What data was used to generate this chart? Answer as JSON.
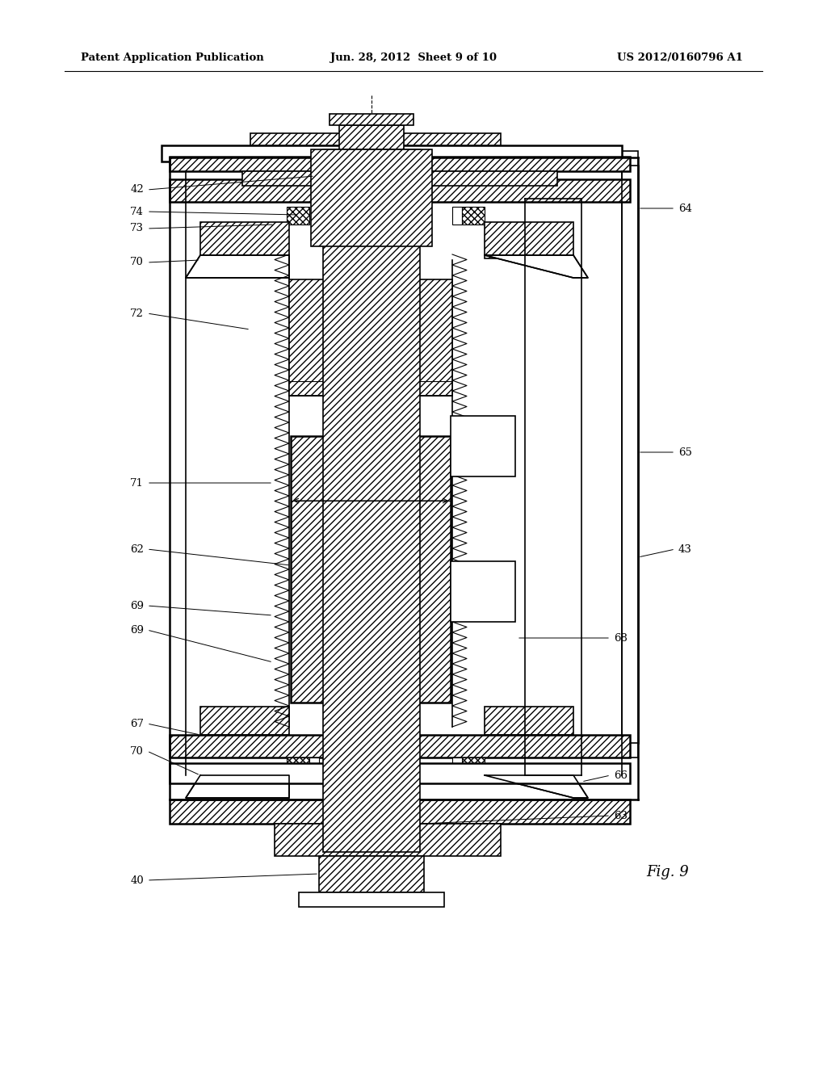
{
  "bg_color": "#ffffff",
  "line_color": "#000000",
  "header_left": "Patent Application Publication",
  "header_mid": "Jun. 28, 2012  Sheet 9 of 10",
  "header_right": "US 2012/0160796 A1",
  "fig_label": "Fig. 9"
}
